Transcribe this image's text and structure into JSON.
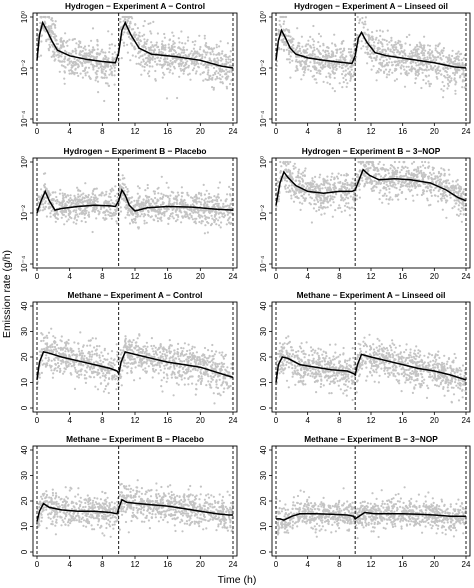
{
  "figure": {
    "ylabel": "Emission rate (g/h)",
    "xlabel": "Time (h)",
    "colors": {
      "points": "#c4c4c4",
      "line": "#000000",
      "frame": "#000000"
    }
  },
  "chart_data": [
    {
      "type": "scatter",
      "title": "Hydrogen − Experiment A − Control",
      "xlabel": "Time (h)",
      "ylabel": "Emission rate (g/h)",
      "yscale": "log",
      "xlim": [
        0,
        24
      ],
      "ylim": [
        0.0001,
        1
      ],
      "xticks": [
        0,
        4,
        8,
        12,
        16,
        20,
        24
      ],
      "yticks": [
        0.0001,
        0.01,
        1
      ],
      "ytick_labels": [
        "10⁻⁴",
        "10⁻²",
        "10⁰"
      ],
      "vlines": [
        0,
        10,
        24
      ],
      "scatter_band": {
        "center_offset_log10": 0.0,
        "spread_log10": 0.8
      },
      "smooth_line": {
        "x": [
          0.0,
          0.3,
          0.7,
          1.2,
          1.8,
          2.5,
          4.0,
          6.0,
          8.0,
          9.6,
          10.0,
          10.4,
          10.8,
          11.5,
          12.5,
          14.0,
          17.0,
          20.0,
          22.5,
          24.0
        ],
        "y": [
          0.02,
          0.2,
          0.6,
          0.3,
          0.12,
          0.05,
          0.03,
          0.022,
          0.018,
          0.016,
          0.04,
          0.3,
          0.6,
          0.2,
          0.06,
          0.035,
          0.028,
          0.02,
          0.012,
          0.01
        ]
      }
    },
    {
      "type": "scatter",
      "title": "Hydrogen − Experiment A − Linseed oil",
      "xlabel": "Time (h)",
      "ylabel": "Emission rate (g/h)",
      "yscale": "log",
      "xlim": [
        0,
        24
      ],
      "ylim": [
        0.0001,
        1
      ],
      "xticks": [
        0,
        4,
        8,
        12,
        16,
        20,
        24
      ],
      "yticks": [
        0.0001,
        0.01,
        1
      ],
      "ytick_labels": [
        "10⁻⁴",
        "10⁻²",
        "10⁰"
      ],
      "vlines": [
        0,
        10,
        24
      ],
      "scatter_band": {
        "center_offset_log10": 0.0,
        "spread_log10": 0.8
      },
      "smooth_line": {
        "x": [
          0.0,
          0.3,
          0.7,
          1.2,
          1.8,
          2.5,
          4.0,
          6.0,
          8.0,
          9.6,
          10.0,
          10.4,
          10.8,
          11.5,
          12.5,
          14.0,
          17.0,
          20.0,
          22.5,
          24.0
        ],
        "y": [
          0.02,
          0.12,
          0.3,
          0.15,
          0.06,
          0.035,
          0.025,
          0.02,
          0.017,
          0.015,
          0.03,
          0.15,
          0.25,
          0.1,
          0.04,
          0.03,
          0.022,
          0.016,
          0.011,
          0.01
        ]
      }
    },
    {
      "type": "scatter",
      "title": "Hydrogen − Experiment B − Placebo",
      "xlabel": "Time (h)",
      "ylabel": "Emission rate (g/h)",
      "yscale": "log",
      "xlim": [
        0,
        24
      ],
      "ylim": [
        0.0001,
        1
      ],
      "xticks": [
        0,
        4,
        8,
        12,
        16,
        20,
        24
      ],
      "yticks": [
        0.0001,
        0.01,
        1
      ],
      "ytick_labels": [
        "10⁻⁴",
        "10⁻²",
        "10⁰"
      ],
      "vlines": [
        0,
        10,
        24
      ],
      "scatter_band": {
        "center_offset_log10": 0.0,
        "spread_log10": 0.65
      },
      "smooth_line": {
        "x": [
          0.0,
          0.5,
          1.0,
          1.5,
          2.2,
          3.0,
          5.0,
          7.0,
          9.0,
          9.6,
          10.0,
          10.4,
          10.8,
          11.3,
          12.0,
          13.5,
          16.0,
          19.0,
          22.0,
          24.0
        ],
        "y": [
          0.01,
          0.03,
          0.07,
          0.03,
          0.013,
          0.015,
          0.018,
          0.02,
          0.019,
          0.018,
          0.03,
          0.08,
          0.05,
          0.02,
          0.012,
          0.016,
          0.018,
          0.017,
          0.014,
          0.013
        ]
      }
    },
    {
      "type": "scatter",
      "title": "Hydrogen − Experiment B − 3−NOP",
      "xlabel": "Time (h)",
      "ylabel": "Emission rate (g/h)",
      "yscale": "log",
      "xlim": [
        0,
        24
      ],
      "ylim": [
        0.0001,
        1
      ],
      "xticks": [
        0,
        4,
        8,
        12,
        16,
        20,
        24
      ],
      "yticks": [
        0.0001,
        0.01,
        1
      ],
      "ytick_labels": [
        "10⁻⁴",
        "10⁻²",
        "10⁰"
      ],
      "vlines": [
        0,
        10,
        24
      ],
      "scatter_band": {
        "center_offset_log10": 0.0,
        "spread_log10": 0.7
      },
      "smooth_line": {
        "x": [
          0.0,
          0.5,
          1.0,
          1.5,
          2.5,
          4.0,
          6.0,
          8.0,
          9.6,
          10.0,
          10.5,
          11.0,
          11.8,
          13.0,
          15.0,
          17.0,
          19.5,
          21.5,
          23.0,
          24.0
        ],
        "y": [
          0.02,
          0.15,
          0.4,
          0.25,
          0.12,
          0.07,
          0.06,
          0.07,
          0.07,
          0.08,
          0.2,
          0.5,
          0.3,
          0.2,
          0.22,
          0.2,
          0.15,
          0.08,
          0.04,
          0.03
        ]
      }
    },
    {
      "type": "scatter",
      "title": "Methane − Experiment A − Control",
      "xlabel": "Time (h)",
      "ylabel": "Emission rate (g/h)",
      "yscale": "linear",
      "xlim": [
        0,
        24
      ],
      "ylim": [
        0,
        40
      ],
      "xticks": [
        0,
        4,
        8,
        12,
        16,
        20,
        24
      ],
      "yticks": [
        0,
        10,
        20,
        30,
        40
      ],
      "ytick_labels": [
        "0",
        "10",
        "20",
        "30",
        "40"
      ],
      "vlines": [
        0,
        10,
        24
      ],
      "scatter_band": {
        "center_offset": 0,
        "spread": 7
      },
      "smooth_line": {
        "x": [
          0.0,
          0.3,
          0.8,
          1.5,
          3.0,
          5.0,
          7.0,
          9.0,
          9.8,
          10.0,
          10.3,
          10.8,
          12.0,
          14.0,
          16.0,
          18.0,
          20.0,
          22.0,
          23.5,
          24.0
        ],
        "y": [
          11,
          18,
          22,
          21.5,
          20,
          18.5,
          17,
          15.5,
          14.5,
          13.5,
          18,
          22,
          21,
          19.5,
          18,
          17,
          16,
          14,
          12.5,
          12
        ]
      }
    },
    {
      "type": "scatter",
      "title": "Methane − Experiment A − Linseed oil",
      "xlabel": "Time (h)",
      "ylabel": "Emission rate (g/h)",
      "yscale": "linear",
      "xlim": [
        0,
        24
      ],
      "ylim": [
        0,
        40
      ],
      "xticks": [
        0,
        4,
        8,
        12,
        16,
        20,
        24
      ],
      "yticks": [
        0,
        10,
        20,
        30,
        40
      ],
      "ytick_labels": [
        "0",
        "10",
        "20",
        "30",
        "40"
      ],
      "vlines": [
        0,
        10,
        24
      ],
      "scatter_band": {
        "center_offset": 0,
        "spread": 6.5
      },
      "smooth_line": {
        "x": [
          0.0,
          0.3,
          0.8,
          1.5,
          3.0,
          5.0,
          7.0,
          9.0,
          9.8,
          10.0,
          10.3,
          10.8,
          12.0,
          14.0,
          16.0,
          18.0,
          20.0,
          22.0,
          23.5,
          24.0
        ],
        "y": [
          10,
          17,
          20,
          19.5,
          17,
          16,
          15,
          14.5,
          13.5,
          13,
          17,
          21,
          20,
          18.5,
          17,
          15.5,
          14.5,
          13,
          11.5,
          11
        ]
      }
    },
    {
      "type": "scatter",
      "title": "Methane − Experiment B − Placebo",
      "xlabel": "Time (h)",
      "ylabel": "Emission rate (g/h)",
      "yscale": "linear",
      "xlim": [
        0,
        24
      ],
      "ylim": [
        0,
        40
      ],
      "xticks": [
        0,
        4,
        8,
        12,
        16,
        20,
        24
      ],
      "yticks": [
        0,
        10,
        20,
        30,
        40
      ],
      "ytick_labels": [
        "0",
        "10",
        "20",
        "30",
        "40"
      ],
      "vlines": [
        0,
        10,
        24
      ],
      "scatter_band": {
        "center_offset": 0,
        "spread": 6
      },
      "smooth_line": {
        "x": [
          0.0,
          0.3,
          0.8,
          1.5,
          3.0,
          5.0,
          7.0,
          9.0,
          9.8,
          10.0,
          10.4,
          11.0,
          12.5,
          14.0,
          16.0,
          18.0,
          20.0,
          22.0,
          23.5,
          24.0
        ],
        "y": [
          12,
          16,
          19,
          17.5,
          16.5,
          16,
          16,
          15.5,
          15,
          17,
          20.5,
          19.5,
          19,
          18.5,
          18,
          17,
          16,
          15,
          14.5,
          14.5
        ]
      }
    },
    {
      "type": "scatter",
      "title": "Methane − Experiment B − 3−NOP",
      "xlabel": "Time (h)",
      "ylabel": "Emission rate (g/h)",
      "yscale": "linear",
      "xlim": [
        0,
        24
      ],
      "ylim": [
        0,
        40
      ],
      "xticks": [
        0,
        4,
        8,
        12,
        16,
        20,
        24
      ],
      "yticks": [
        0,
        10,
        20,
        30,
        40
      ],
      "ytick_labels": [
        "0",
        "10",
        "20",
        "30",
        "40"
      ],
      "vlines": [
        0,
        10,
        24
      ],
      "scatter_band": {
        "center_offset": 0,
        "spread": 5
      },
      "smooth_line": {
        "x": [
          0.0,
          0.5,
          1.0,
          2.0,
          3.0,
          5.0,
          7.0,
          9.0,
          9.8,
          10.0,
          10.5,
          11.2,
          12.5,
          14.0,
          16.0,
          18.0,
          20.0,
          22.0,
          23.5,
          24.0
        ],
        "y": [
          13,
          13,
          12.5,
          14,
          15,
          15,
          14.8,
          14.5,
          14,
          13,
          14,
          15.5,
          15,
          15,
          15,
          14.8,
          14.5,
          14,
          14,
          14
        ]
      }
    }
  ]
}
